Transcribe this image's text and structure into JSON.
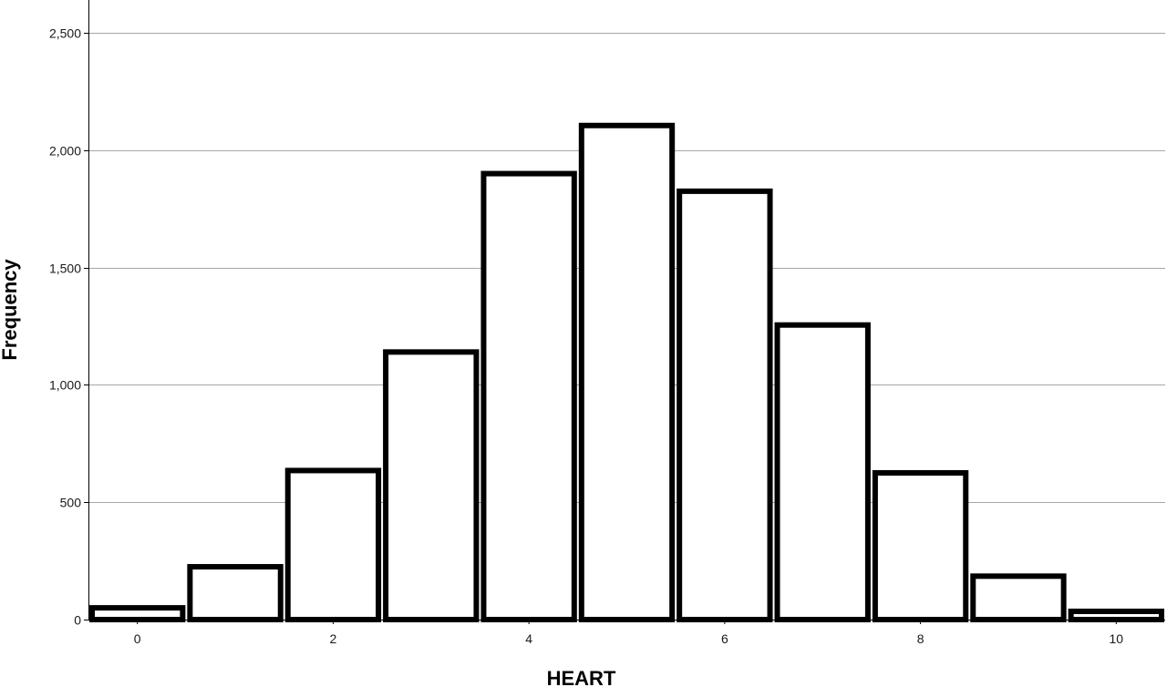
{
  "chart_data": {
    "type": "bar",
    "title": "",
    "xlabel": "HEART",
    "ylabel": "Frequency",
    "categories": [
      "0",
      "1",
      "2",
      "3",
      "4",
      "5",
      "6",
      "7",
      "8",
      "9",
      "10"
    ],
    "values": [
      50,
      225,
      635,
      1140,
      1900,
      2105,
      1825,
      1255,
      625,
      185,
      35
    ],
    "xlim": [
      -0.5,
      10.5
    ],
    "ylim": [
      0,
      2500
    ],
    "x_ticks": [
      0,
      2,
      4,
      6,
      8,
      10
    ],
    "x_tick_labels": [
      "0",
      "2",
      "4",
      "6",
      "8",
      "10"
    ],
    "y_ticks": [
      0,
      500,
      1000,
      1500,
      2000,
      2500
    ],
    "y_tick_labels": [
      "0",
      "500",
      "1,000",
      "1,500",
      "2,000",
      "2,500"
    ],
    "grid": true,
    "colors": {
      "bar_fill": "#ffffff",
      "bar_stroke": "#000000",
      "grid": "#a6a6a6"
    }
  }
}
